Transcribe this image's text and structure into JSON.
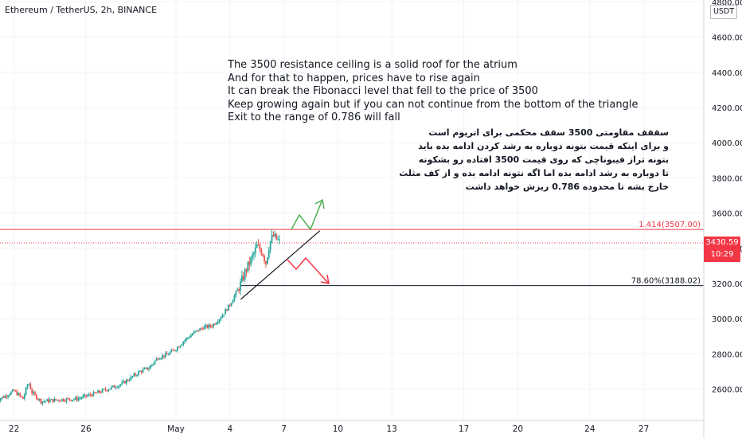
{
  "header": {
    "symbol_title": "Ethereum / TetherUS, 2h, BINANCE"
  },
  "currency_label": "USDT",
  "price_badge": {
    "price": "3430.59",
    "countdown": "10:29",
    "color": "#f23645"
  },
  "annotations": {
    "english": [
      "The 3500 resistance ceiling is a solid roof for the atrium",
      "And for that to happen, prices have to rise again",
      "It can break the Fibonacci level that fell to the price of 3500",
      "Keep growing again but if you can not continue from the bottom of the triangle",
      "Exit to the range of 0.786 will fall"
    ],
    "persian": [
      "سققف مقاومتی 3500 سقف محکمی برای اتریوم است",
      "و برای اینکه قیمت بتونه دوباره به رشد کردن ادامه بده باید",
      "بتونه تراز فیبوناچی که روی قیمت 3500 افتاده رو بشکونه",
      "تا دوباره به رشد ادامه بده اما اگه نتونه ادامه بده و از کف مثلث",
      "خارج بشه تا محدوده 0.786 ریزش خواهد داشت"
    ]
  },
  "fib_levels": [
    {
      "label": "1.414(3507.00)",
      "price": 3507,
      "color": "#f23645"
    },
    {
      "label": "78.60%(3188.02)",
      "price": 3188.02,
      "color": "#131722"
    }
  ],
  "chart_data": {
    "type": "candlestick",
    "title": "Ethereum / TetherUS, 2h, BINANCE",
    "y_axis": {
      "ticks": [
        2600,
        2800,
        3000,
        3200,
        3400,
        3600,
        3800,
        4000,
        4200,
        4400,
        4600,
        4800
      ],
      "tick_labels": [
        "2600.00",
        "2800.00",
        "3000.00",
        "3200.00",
        "3400.00",
        "3600.00",
        "3800.00",
        "4000.00",
        "4200.00",
        "4400.00",
        "4600.00",
        "4800.00"
      ],
      "range": [
        2520,
        4830
      ],
      "side": "right"
    },
    "x_axis": {
      "tick_labels": [
        "22",
        "26",
        "May",
        "4",
        "7",
        "10",
        "13",
        "17",
        "20",
        "24",
        "27"
      ],
      "tick_days": [
        -9,
        -5,
        0,
        3,
        6,
        9,
        12,
        16,
        19,
        23,
        26
      ]
    },
    "close_series": [
      [
        -10.0,
        2535
      ],
      [
        -9.5,
        2560
      ],
      [
        -9.0,
        2590
      ],
      [
        -8.5,
        2545
      ],
      [
        -8.2,
        2640
      ],
      [
        -8.0,
        2580
      ],
      [
        -7.5,
        2530
      ],
      [
        -6.5,
        2540
      ],
      [
        -5.5,
        2545
      ],
      [
        -4.5,
        2575
      ],
      [
        -3.8,
        2600
      ],
      [
        -3.0,
        2630
      ],
      [
        -2.5,
        2665
      ],
      [
        -2.0,
        2700
      ],
      [
        -1.5,
        2720
      ],
      [
        -1.0,
        2780
      ],
      [
        -0.5,
        2795
      ],
      [
        0.0,
        2830
      ],
      [
        0.5,
        2880
      ],
      [
        1.0,
        2920
      ],
      [
        1.5,
        2950
      ],
      [
        2.0,
        2960
      ],
      [
        2.5,
        3010
      ],
      [
        3.0,
        3080
      ],
      [
        3.3,
        3140
      ],
      [
        3.6,
        3200
      ],
      [
        3.9,
        3280
      ],
      [
        4.2,
        3340
      ],
      [
        4.5,
        3410
      ],
      [
        4.8,
        3380
      ],
      [
        5.0,
        3320
      ],
      [
        5.2,
        3430
      ],
      [
        5.4,
        3470
      ],
      [
        5.6,
        3450
      ],
      [
        5.8,
        3430
      ]
    ],
    "last_price": 3430.59,
    "current_price_line": 3430.59,
    "fib_levels": [
      {
        "ratio": "1.414",
        "price": 3507
      },
      {
        "ratio": "78.60%",
        "price": 3188.02
      }
    ],
    "triangle": {
      "apex_day": 8.0,
      "apex_price": 3500,
      "base_start_day": 3.6,
      "base_start_price": 3110
    },
    "scenarios": [
      {
        "name": "breakout",
        "color": "#4caf50",
        "direction": "up"
      },
      {
        "name": "breakdown",
        "color": "#f23645",
        "direction": "down"
      }
    ],
    "grid": true,
    "colors": {
      "up": "#26a69a",
      "down": "#ef5350"
    }
  }
}
